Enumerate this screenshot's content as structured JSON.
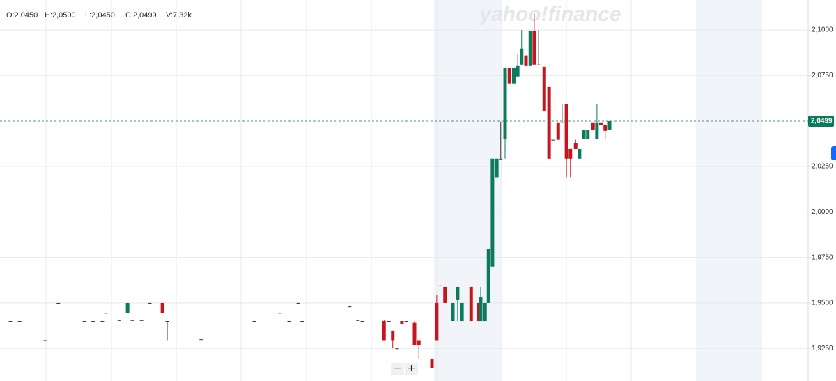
{
  "chart_data": {
    "type": "candlestick",
    "ohlc_header": [
      "O:2,0450",
      "H:2,0500",
      "L:2,0450",
      "C:2,0499",
      "V:7,32k"
    ],
    "watermark": "yahoo!finance",
    "up_color": "#0c7a5d",
    "down_color": "#c4161c",
    "flat_color": "#333333",
    "xlim": [
      0,
      185.6
    ],
    "ylim": [
      1.9071,
      2.1165
    ],
    "yticks": [
      {
        "value": 1.925,
        "label": "1,9250"
      },
      {
        "value": 1.95,
        "label": "1,9500"
      },
      {
        "value": 1.975,
        "label": "1,9750"
      },
      {
        "value": 2.0,
        "label": "2,0000"
      },
      {
        "value": 2.025,
        "label": "2,0250"
      },
      {
        "value": 2.075,
        "label": "2,0750"
      },
      {
        "value": 2.1,
        "label": "2,1000"
      }
    ],
    "grid": true,
    "last_price": {
      "value": 2.0499,
      "label": "2,0499"
    },
    "x": [
      2.4,
      4.5,
      10.4,
      13.4,
      19.4,
      21.4,
      23.5,
      24.3,
      27.4,
      29.3,
      30.4,
      32.5,
      34.4,
      37.3,
      38.4,
      46.2,
      58.4,
      64.3,
      66.4,
      68.5,
      69.4,
      80.3,
      82.2,
      83.2,
      88.2,
      89.3,
      90.2,
      91.2,
      92.3,
      93.3,
      95.2,
      96.2,
      99.2,
      100.3,
      101.1,
      102.2,
      104.0,
      105.1,
      106.1,
      108.2,
      109.9,
      110.4,
      111.4,
      112.2,
      113.1,
      114.1,
      115.0,
      116.0,
      117.0,
      118.0,
      118.9,
      119.8,
      120.8,
      121.8,
      122.7,
      123.7,
      125.0,
      126.1,
      127.0,
      128.2,
      129.1,
      130.1,
      131.0,
      132.2,
      133.1,
      134.1,
      135.0,
      136.2,
      137.1,
      138.0,
      139.0,
      140.0
    ],
    "open": [
      1.94,
      1.94,
      1.9295,
      1.95,
      1.94,
      1.94,
      1.94,
      1.9445,
      1.9405,
      1.9445,
      1.9405,
      1.9405,
      1.95,
      1.95,
      1.94,
      1.93,
      1.94,
      1.9445,
      1.94,
      1.95,
      1.94,
      1.948,
      1.9405,
      1.94,
      1.94,
      1.94,
      1.9347,
      1.925,
      1.94,
      1.94,
      1.939,
      1.9295,
      1.9193,
      1.95,
      1.9596,
      1.9588,
      1.94,
      1.9519,
      1.94,
      1.9588,
      1.95,
      1.94,
      1.94,
      1.95,
      1.97,
      2.0191,
      2.0293,
      2.04,
      2.079,
      2.0707,
      2.0745,
      2.081,
      2.086,
      2.0802,
      2.0994,
      2.081,
      2.0798,
      2.0687,
      2.0397,
      2.0492,
      2.0492,
      2.0592,
      2.0346,
      2.0377,
      2.0293,
      2.04,
      2.04,
      2.0492,
      2.04,
      2.0492,
      2.0477,
      2.045
    ],
    "high": [
      1.94,
      1.94,
      1.9295,
      1.95,
      1.94,
      1.94,
      1.94,
      1.9445,
      1.9405,
      1.95,
      1.9405,
      1.9405,
      1.95,
      1.95,
      1.94,
      1.93,
      1.94,
      1.9445,
      1.94,
      1.95,
      1.94,
      1.948,
      1.9405,
      1.94,
      1.9405,
      1.94,
      1.9347,
      1.925,
      1.94,
      1.94,
      1.94,
      1.9295,
      1.9193,
      1.9546,
      1.9596,
      1.9588,
      1.95,
      1.9588,
      1.95,
      1.9588,
      1.95,
      1.9588,
      1.95,
      1.9795,
      2.0293,
      2.0293,
      2.0496,
      2.079,
      2.079,
      2.079,
      2.087,
      2.1,
      2.086,
      2.0994,
      2.109,
      2.1,
      2.0798,
      2.0687,
      2.0397,
      2.0492,
      2.0592,
      2.0592,
      2.0346,
      2.0397,
      2.0346,
      2.045,
      2.045,
      2.0492,
      2.0592,
      2.0492,
      2.0477,
      2.05
    ],
    "low": [
      1.94,
      1.94,
      1.9295,
      1.95,
      1.94,
      1.94,
      1.94,
      1.9445,
      1.9405,
      1.9445,
      1.9405,
      1.9405,
      1.95,
      1.9445,
      1.9295,
      1.93,
      1.94,
      1.9445,
      1.94,
      1.95,
      1.94,
      1.948,
      1.9405,
      1.94,
      1.9295,
      1.94,
      1.925,
      1.925,
      1.9385,
      1.94,
      1.927,
      1.9193,
      1.9144,
      1.9295,
      1.9596,
      1.95,
      1.94,
      1.94,
      1.94,
      1.94,
      1.94,
      1.94,
      1.94,
      1.95,
      1.97,
      2.0191,
      2.0293,
      2.0293,
      2.0707,
      2.0707,
      2.0745,
      2.081,
      2.0802,
      2.0802,
      2.081,
      2.081,
      2.0553,
      2.0293,
      2.0397,
      2.0397,
      2.0492,
      2.0191,
      2.0191,
      2.0346,
      2.0293,
      2.04,
      2.04,
      2.045,
      2.04,
      2.0247,
      2.04,
      2.045
    ],
    "close": [
      1.94,
      1.94,
      1.9295,
      1.95,
      1.94,
      1.94,
      1.94,
      1.9445,
      1.9405,
      1.95,
      1.9405,
      1.9405,
      1.95,
      1.9445,
      1.94,
      1.93,
      1.94,
      1.9445,
      1.94,
      1.95,
      1.94,
      1.948,
      1.9405,
      1.94,
      1.9295,
      1.94,
      1.9295,
      1.925,
      1.9385,
      1.94,
      1.927,
      1.927,
      1.9144,
      1.9295,
      1.9596,
      1.95,
      1.95,
      1.9588,
      1.95,
      1.94,
      1.94,
      1.953,
      1.95,
      1.9795,
      2.0293,
      2.0293,
      2.0293,
      2.079,
      2.0707,
      2.079,
      2.0802,
      2.0898,
      2.0802,
      2.0994,
      2.081,
      2.081,
      2.0553,
      2.0293,
      2.0397,
      2.0397,
      2.0492,
      2.0293,
      2.0293,
      2.0346,
      2.0346,
      2.045,
      2.045,
      2.045,
      2.0492,
      2.0477,
      2.0446,
      2.0499
    ]
  },
  "controls": {
    "zoom_out": "−",
    "zoom_in": "+"
  }
}
